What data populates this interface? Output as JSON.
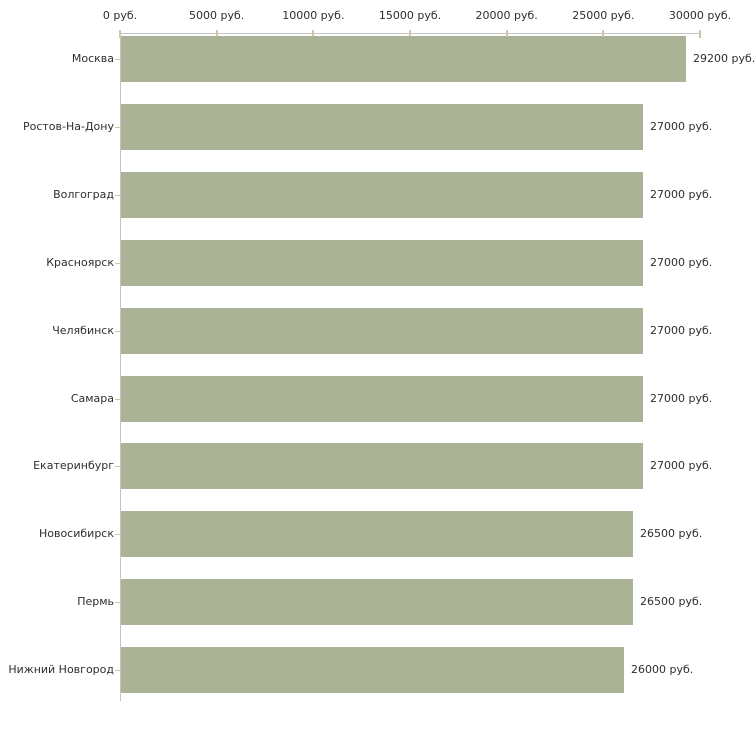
{
  "chart_data": {
    "type": "bar",
    "orientation": "horizontal",
    "title": "",
    "xlabel": "",
    "ylabel": "",
    "categories": [
      "Москва",
      "Ростов-На-Дону",
      "Волгоград",
      "Красноярск",
      "Челябинск",
      "Самара",
      "Екатеринбург",
      "Новосибирск",
      "Пермь",
      "Нижний Новгород"
    ],
    "values": [
      29200,
      27000,
      27000,
      27000,
      27000,
      27000,
      27000,
      26500,
      26500,
      26000
    ],
    "value_labels": [
      "29200 руб.",
      "27000 руб.",
      "27000 руб.",
      "27000 руб.",
      "27000 руб.",
      "27000 руб.",
      "27000 руб.",
      "26500 руб.",
      "26500 руб.",
      "26000 руб."
    ],
    "x_axis": {
      "position": "top",
      "ticks": [
        0,
        5000,
        10000,
        15000,
        20000,
        25000,
        30000
      ],
      "tick_labels": [
        "0 руб.",
        "5000 руб.",
        "10000 руб.",
        "15000 руб.",
        "20000 руб.",
        "25000 руб.",
        "30000 руб."
      ],
      "xlim": [
        0,
        30000
      ]
    },
    "grid": false,
    "legend": false,
    "colors": {
      "bar_fill": "#aab396",
      "axis_line": "#c4c4c4",
      "tick_mark": "#c9c9a3",
      "text": "#2e2e2e",
      "background": "#ffffff"
    }
  }
}
